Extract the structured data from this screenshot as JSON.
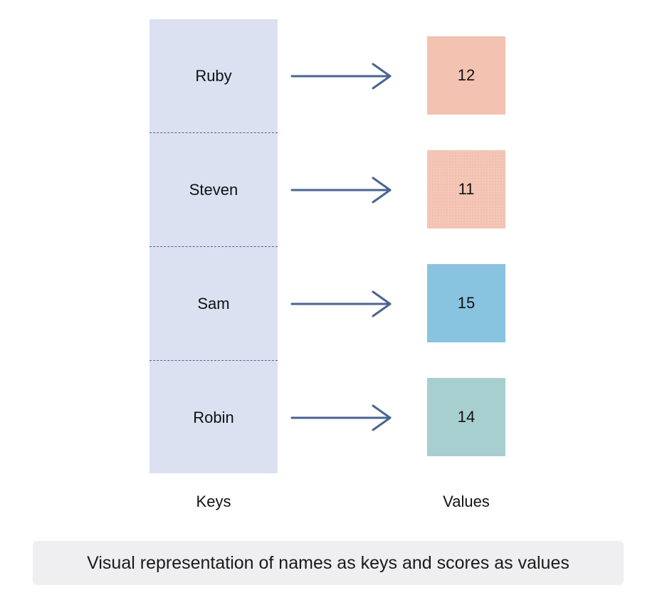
{
  "pairs": [
    {
      "key": "Ruby",
      "value": "12",
      "color": "#f3c2b1",
      "textured": false
    },
    {
      "key": "Steven",
      "value": "11",
      "color": "#f3c2b1",
      "textured": true
    },
    {
      "key": "Sam",
      "value": "15",
      "color": "#88c4e0",
      "textured": false
    },
    {
      "key": "Robin",
      "value": "14",
      "color": "#a8cfcf",
      "textured": false
    }
  ],
  "labels": {
    "keys": "Keys",
    "values": "Values"
  },
  "caption": "Visual representation of names as keys and scores as values",
  "colors": {
    "key_column": "#dbe1f1",
    "arrow": "#4a6491",
    "divider": "#56648a",
    "caption_bg": "#efeff1"
  }
}
